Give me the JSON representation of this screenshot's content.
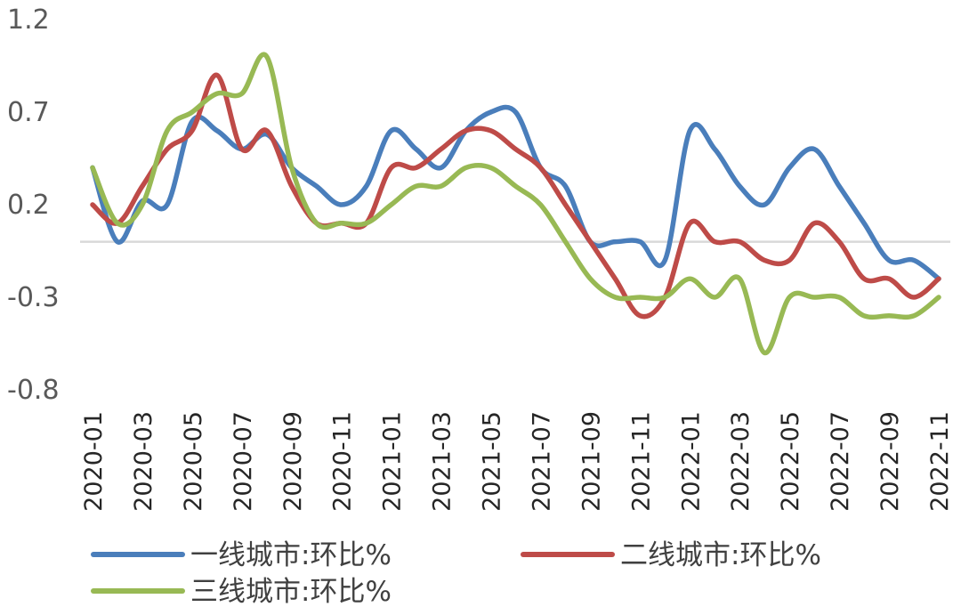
{
  "chart_data": {
    "type": "line",
    "title": "",
    "xlabel": "",
    "ylabel": "",
    "ylim": [
      -0.8,
      1.2
    ],
    "yticks": [
      "1.2",
      "0.7",
      "0.2",
      "-0.3",
      "-0.8"
    ],
    "ytick_values": [
      1.2,
      0.7,
      0.2,
      -0.3,
      -0.8
    ],
    "zero_line": true,
    "grid": false,
    "legend_position": "bottom",
    "x": [
      "2020-01",
      "2020-02",
      "2020-03",
      "2020-04",
      "2020-05",
      "2020-06",
      "2020-07",
      "2020-08",
      "2020-09",
      "2020-10",
      "2020-11",
      "2020-12",
      "2021-01",
      "2021-02",
      "2021-03",
      "2021-04",
      "2021-05",
      "2021-06",
      "2021-07",
      "2021-08",
      "2021-09",
      "2021-10",
      "2021-11",
      "2021-12",
      "2022-01",
      "2022-02",
      "2022-03",
      "2022-04",
      "2022-05",
      "2022-06",
      "2022-07",
      "2022-08",
      "2022-09",
      "2022-10",
      "2022-11"
    ],
    "xtick_labels": [
      "2020-01",
      "2020-03",
      "2020-05",
      "2020-07",
      "2020-09",
      "2020-11",
      "2021-01",
      "2021-03",
      "2021-05",
      "2021-07",
      "2021-09",
      "2021-11",
      "2022-01",
      "2022-03",
      "2022-05",
      "2022-07",
      "2022-09",
      "2022-11"
    ],
    "series": [
      {
        "name": "一线城市:环比%",
        "color": "#4a7ebb",
        "values": [
          0.4,
          0.0,
          0.22,
          0.2,
          0.65,
          0.6,
          0.5,
          0.58,
          0.4,
          0.3,
          0.2,
          0.3,
          0.6,
          0.5,
          0.4,
          0.6,
          0.7,
          0.7,
          0.4,
          0.3,
          0.0,
          0.0,
          0.0,
          -0.1,
          0.6,
          0.5,
          0.3,
          0.2,
          0.4,
          0.5,
          0.3,
          0.1,
          -0.1,
          -0.1,
          -0.2
        ]
      },
      {
        "name": "二线城市:环比%",
        "color": "#be4b48",
        "values": [
          0.2,
          0.1,
          0.3,
          0.5,
          0.6,
          0.9,
          0.5,
          0.6,
          0.3,
          0.1,
          0.1,
          0.1,
          0.4,
          0.4,
          0.5,
          0.6,
          0.6,
          0.5,
          0.4,
          0.2,
          0.0,
          -0.2,
          -0.4,
          -0.3,
          0.1,
          0.0,
          0.0,
          -0.1,
          -0.1,
          0.1,
          0.0,
          -0.2,
          -0.2,
          -0.3,
          -0.2
        ]
      },
      {
        "name": "三线城市:环比%",
        "color": "#98b954",
        "values": [
          0.4,
          0.1,
          0.2,
          0.6,
          0.7,
          0.8,
          0.8,
          1.0,
          0.4,
          0.1,
          0.1,
          0.1,
          0.2,
          0.3,
          0.3,
          0.4,
          0.4,
          0.3,
          0.2,
          0.0,
          -0.2,
          -0.3,
          -0.3,
          -0.3,
          -0.2,
          -0.3,
          -0.2,
          -0.6,
          -0.3,
          -0.3,
          -0.3,
          -0.4,
          -0.4,
          -0.4,
          -0.3
        ]
      }
    ]
  }
}
